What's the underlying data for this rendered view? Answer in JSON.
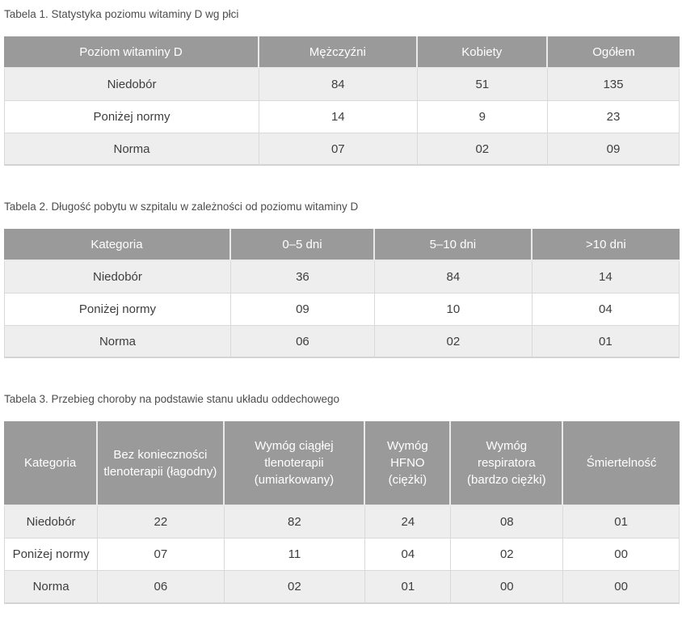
{
  "colors": {
    "header_bg": "#9a9a9a",
    "header_text": "#ffffff",
    "header_divider": "#eaeaea",
    "row_odd_bg": "#eeeeef",
    "row_even_bg": "#ffffff",
    "cell_border": "#d9d9d9",
    "title_text": "#4d4d4d",
    "cell_text": "#3e3e3e"
  },
  "tables": [
    {
      "title": "Tabela 1. Statystyka poziomu witaminy D wg płci",
      "columns": [
        "Poziom witaminy D",
        "Mężczyźni",
        "Kobiety",
        "Ogółem"
      ],
      "rows": [
        [
          "Niedobór",
          "84",
          "51",
          "135"
        ],
        [
          "Poniżej normy",
          "14",
          "9",
          "23"
        ],
        [
          "Norma",
          "07",
          "02",
          "09"
        ]
      ]
    },
    {
      "title": "Tabela 2. Długość pobytu w szpitalu w zależności od poziomu witaminy D",
      "columns": [
        "Kategoria",
        "0–5 dni",
        "5–10 dni",
        ">10 dni"
      ],
      "rows": [
        [
          "Niedobór",
          "36",
          "84",
          "14"
        ],
        [
          "Poniżej normy",
          "09",
          "10",
          "04"
        ],
        [
          "Norma",
          "06",
          "02",
          "01"
        ]
      ]
    },
    {
      "title": "Tabela 3. Przebieg choroby na podstawie stanu układu oddechowego",
      "columns": [
        "Kategoria",
        "Bez konieczności tlenoterapii (łagodny)",
        "Wymóg ciągłej tlenoterapii (umiarkowany)",
        "Wymóg HFNO (ciężki)",
        "Wymóg respiratora (bardzo ciężki)",
        "Śmiertelność"
      ],
      "rows": [
        [
          "Niedobór",
          "22",
          "82",
          "24",
          "08",
          "01"
        ],
        [
          "Poniżej normy",
          "07",
          "11",
          "04",
          "02",
          "00"
        ],
        [
          "Norma",
          "06",
          "02",
          "01",
          "00",
          "00"
        ]
      ]
    }
  ]
}
